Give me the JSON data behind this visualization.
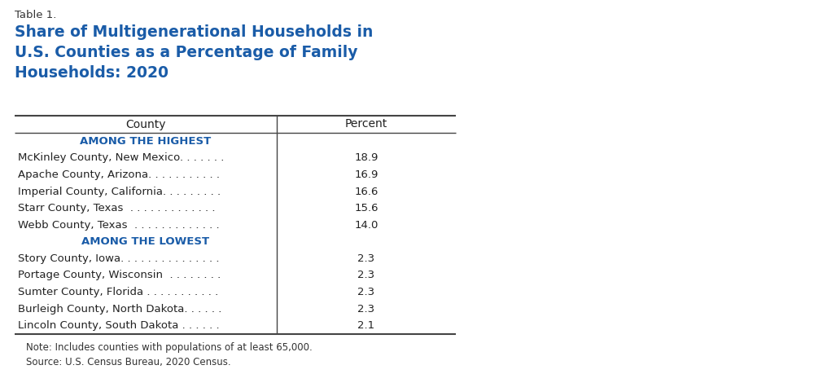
{
  "table_label": "Table 1.",
  "title_line1": "Share of Multigenerational Households in",
  "title_line2": "U.S. Counties as a Percentage of Family",
  "title_line3": "Households: 2020",
  "title_color": "#1A5CA8",
  "table_label_color": "#333333",
  "header_county": "County",
  "header_percent": "Percent",
  "section1_label": "AMONG THE HIGHEST",
  "section2_label": "AMONG THE LOWEST",
  "section_color": "#1A5CA8",
  "highest_rows": [
    [
      "McKinley County, New Mexico. . . . . . .",
      "18.9"
    ],
    [
      "Apache County, Arizona. . . . . . . . . . .",
      "16.9"
    ],
    [
      "Imperial County, California. . . . . . . . .",
      "16.6"
    ],
    [
      "Starr County, Texas  . . . . . . . . . . . . .",
      "15.6"
    ],
    [
      "Webb County, Texas  . . . . . . . . . . . . .",
      "14.0"
    ]
  ],
  "lowest_rows": [
    [
      "Story County, Iowa. . . . . . . . . . . . . . .",
      "2.3"
    ],
    [
      "Portage County, Wisconsin  . . . . . . . .",
      "2.3"
    ],
    [
      "Sumter County, Florida . . . . . . . . . . .",
      "2.3"
    ],
    [
      "Burleigh County, North Dakota. . . . . .",
      "2.3"
    ],
    [
      "Lincoln County, South Dakota . . . . . .",
      "2.1"
    ]
  ],
  "note_line1": "Note: Includes counties with populations of at least 65,000.",
  "note_line2": "Source: U.S. Census Bureau, 2020 Census.",
  "note_color": "#333333",
  "bg_color": "#FFFFFF",
  "line_color": "#444444",
  "text_color": "#222222",
  "title_fontsize": 13.5,
  "label_fontsize": 9.5,
  "header_fontsize": 10,
  "note_fontsize": 8.5
}
